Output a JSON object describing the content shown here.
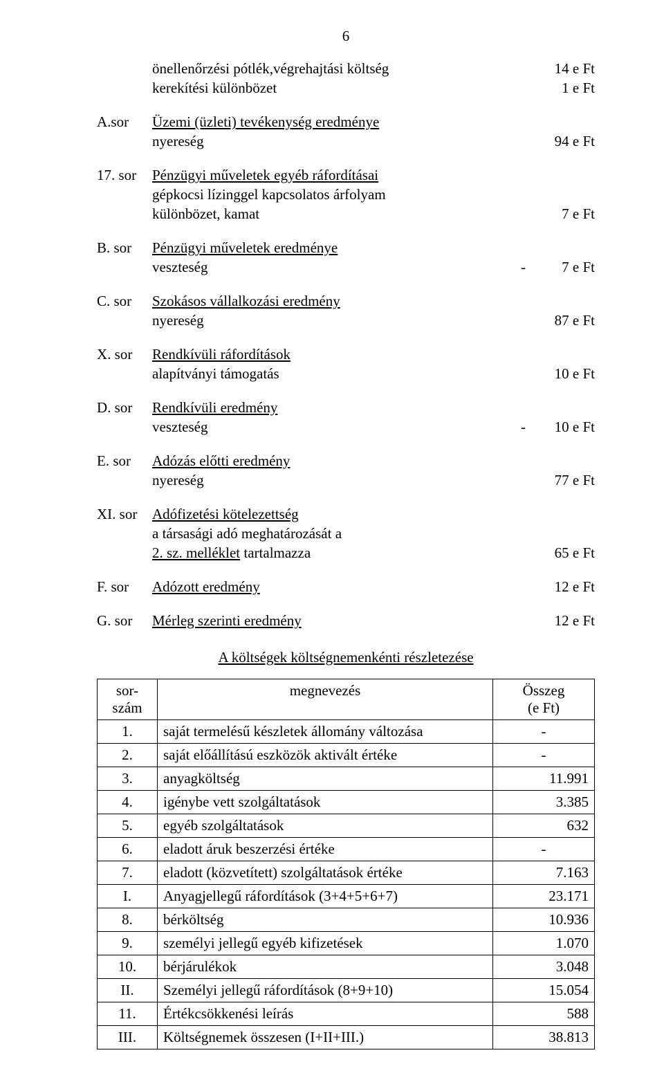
{
  "page_number": "6",
  "rows": [
    {
      "label": "",
      "text": "önellenőrzési pótlék,végrehajtási költség",
      "value": "14 e Ft"
    },
    {
      "label": "",
      "text": "kerekítési különbözet",
      "value": "1 e Ft"
    },
    {
      "gap": true
    },
    {
      "label": "A.sor",
      "underline": true,
      "text": "Üzemi (üzleti) tevékenység eredménye",
      "value": ""
    },
    {
      "label": "",
      "text": "nyereség",
      "value": "94  e Ft"
    },
    {
      "gap": true
    },
    {
      "label": "17. sor",
      "underline": true,
      "text": "Pénzügyi műveletek egyéb ráfordításai",
      "value": ""
    },
    {
      "label": "",
      "text": "gépkocsi lízinggel kapcsolatos árfolyam",
      "value": ""
    },
    {
      "label": "",
      "text": "különbözet, kamat",
      "value": "7 e Ft"
    },
    {
      "gap": true
    },
    {
      "label": "B. sor",
      "underline": true,
      "text": "Pénzügyi műveletek eredménye",
      "value": ""
    },
    {
      "label": "",
      "text": "veszteség",
      "minus": "-",
      "value": "7 e Ft"
    },
    {
      "gap": true
    },
    {
      "label": "C. sor",
      "underline": true,
      "text": "Szokásos vállalkozási eredmény",
      "value": ""
    },
    {
      "label": "",
      "text": "nyereség",
      "value": "87 e Ft"
    },
    {
      "gap": true
    },
    {
      "label": "X. sor",
      "underline": true,
      "text": "Rendkívüli ráfordítások",
      "value": ""
    },
    {
      "label": "",
      "text": "alapítványi támogatás",
      "value": "10 e Ft"
    },
    {
      "gap": true
    },
    {
      "label": "D. sor",
      "underline": true,
      "text": "Rendkívüli eredmény",
      "value": ""
    },
    {
      "label": "",
      "text": "veszteség",
      "minus": "-",
      "value": "10 e Ft"
    },
    {
      "gap": true
    },
    {
      "label": "E. sor",
      "underline": true,
      "text": "Adózás előtti eredmény",
      "value": ""
    },
    {
      "label": "",
      "text": "nyereség",
      "value": "77 e Ft"
    },
    {
      "gap": true
    },
    {
      "label": "XI. sor",
      "underline": true,
      "text": "Adófizetési kötelezettség",
      "value": ""
    },
    {
      "label": "",
      "text": "a társasági adó meghatározását a",
      "value": ""
    },
    {
      "label": "",
      "attachment_underline": true,
      "attachment": "2. sz. melléklet",
      "after": " tartalmazza",
      "value": "65 e Ft"
    },
    {
      "gap": true
    },
    {
      "label": "F. sor",
      "underline": true,
      "text": "Adózott eredmény",
      "value": "12 e Ft"
    },
    {
      "gap": true
    },
    {
      "label": "G. sor",
      "underline": true,
      "text": "Mérleg szerinti eredmény",
      "value": "12 e Ft"
    }
  ],
  "subtitle": "A költségek költségnemenkénti részletezése",
  "table": {
    "header": {
      "num": "sor-\nszám",
      "name": "megnevezés",
      "amt": "Összeg\n(e Ft)"
    },
    "rows": [
      {
        "num": "1.",
        "name": "saját termelésű készletek állomány változása",
        "amt": "-"
      },
      {
        "num": "2.",
        "name": "saját előállítású eszközök aktivált értéke",
        "amt": "-"
      },
      {
        "num": "3.",
        "name": "anyagköltség",
        "amt": "11.991"
      },
      {
        "num": "4.",
        "name": "igénybe vett szolgáltatások",
        "amt": "3.385"
      },
      {
        "num": "5.",
        "name": "egyéb szolgáltatások",
        "amt": "632"
      },
      {
        "num": "6.",
        "name": "eladott áruk beszerzési értéke",
        "amt": "-"
      },
      {
        "num": "7.",
        "name": "eladott (közvetített) szolgáltatások értéke",
        "amt": "7.163"
      },
      {
        "num": "I.",
        "name": "Anyagjellegű ráfordítások (3+4+5+6+7)",
        "amt": "23.171"
      },
      {
        "num": "8.",
        "name": "bérköltség",
        "amt": "10.936"
      },
      {
        "num": "9.",
        "name": "személyi jellegű egyéb kifizetések",
        "amt": "1.070"
      },
      {
        "num": "10.",
        "name": "bérjárulékok",
        "amt": "3.048"
      },
      {
        "num": "II.",
        "name": "Személyi jellegű ráfordítások (8+9+10)",
        "amt": "15.054"
      },
      {
        "num": "11.",
        "name": "Értékcsökkenési leírás",
        "amt": "588"
      },
      {
        "num": "III.",
        "name": "Költségnemek összesen (I+II+III.)",
        "amt": "38.813"
      }
    ]
  }
}
